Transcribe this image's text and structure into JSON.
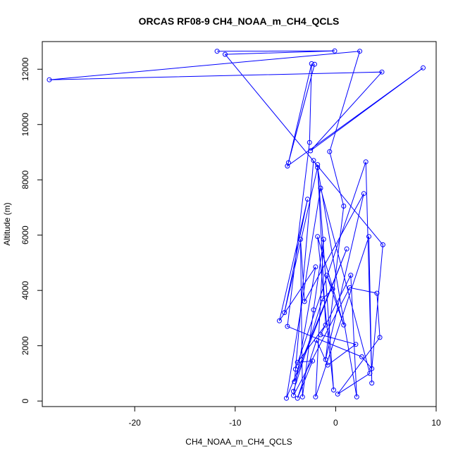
{
  "chart_data": {
    "type": "line",
    "title": "ORCAS RF08-9 CH4_NOAA_m_CH4_QCLS",
    "xlabel": "CH4_NOAA_m_CH4_QCLS",
    "ylabel": "Altitude (m)",
    "xlim": [
      -29.2,
      10.0
    ],
    "ylim": [
      -200,
      13000
    ],
    "xticks": [
      -20,
      -10,
      0,
      10
    ],
    "yticks": [
      0,
      2000,
      4000,
      6000,
      8000,
      10000,
      12000
    ],
    "grid": false,
    "legend": "none",
    "color": "#0000ff",
    "series": [
      {
        "values": [
          {
            "x": -11.8,
            "y": 12650
          },
          {
            "x": -0.1,
            "y": 12660
          },
          {
            "x": -11.0,
            "y": 12540
          },
          {
            "x": 4.7,
            "y": 5650
          },
          {
            "x": 3.6,
            "y": 1170
          },
          {
            "x": 2.6,
            "y": 1600
          },
          {
            "x": -4.8,
            "y": 2700
          },
          {
            "x": -2.6,
            "y": 9350
          },
          {
            "x": -2.4,
            "y": 12200
          },
          {
            "x": -4.7,
            "y": 8620
          },
          {
            "x": -2.1,
            "y": 12180
          },
          {
            "x": -4.8,
            "y": 8500
          },
          {
            "x": 8.7,
            "y": 12050
          },
          {
            "x": -2.5,
            "y": 9050
          },
          {
            "x": 4.6,
            "y": 11900
          },
          {
            "x": -28.5,
            "y": 11620
          },
          {
            "x": 2.4,
            "y": 12650
          },
          {
            "x": -0.6,
            "y": 9020
          },
          {
            "x": 0.8,
            "y": 7050
          },
          {
            "x": -1.0,
            "y": 1500
          },
          {
            "x": 2.8,
            "y": 7500
          },
          {
            "x": -3.1,
            "y": 3600
          },
          {
            "x": -3.5,
            "y": 5850
          },
          {
            "x": -3.3,
            "y": 150
          },
          {
            "x": -2.2,
            "y": 3300
          },
          {
            "x": -1.2,
            "y": 5850
          },
          {
            "x": -2.0,
            "y": 150
          },
          {
            "x": 3.3,
            "y": 5950
          },
          {
            "x": 3.6,
            "y": 650
          },
          {
            "x": 3.0,
            "y": 8650
          },
          {
            "x": -4.0,
            "y": 1150
          },
          {
            "x": -2.2,
            "y": 8700
          },
          {
            "x": -4.1,
            "y": 700
          },
          {
            "x": 1.1,
            "y": 5500
          },
          {
            "x": -4.9,
            "y": 100
          },
          {
            "x": -1.5,
            "y": 7700
          },
          {
            "x": 3.4,
            "y": 1000
          },
          {
            "x": 0.2,
            "y": 250
          },
          {
            "x": 4.4,
            "y": 2300
          },
          {
            "x": 4.1,
            "y": 3900
          },
          {
            "x": 1.4,
            "y": 4100
          },
          {
            "x": -4.2,
            "y": 200
          },
          {
            "x": -2.0,
            "y": 4850
          },
          {
            "x": -5.6,
            "y": 2900
          },
          {
            "x": -2.8,
            "y": 7300
          },
          {
            "x": -5.1,
            "y": 3200
          },
          {
            "x": -1.8,
            "y": 8450
          },
          {
            "x": 2.1,
            "y": 150
          },
          {
            "x": 1.5,
            "y": 4550
          },
          {
            "x": -1.5,
            "y": 2400
          },
          {
            "x": 2.0,
            "y": 2050
          },
          {
            "x": -0.8,
            "y": 1300
          },
          {
            "x": -1.9,
            "y": 2200
          },
          {
            "x": -3.8,
            "y": 100
          },
          {
            "x": -2.3,
            "y": 1450
          },
          {
            "x": -3.8,
            "y": 1400
          },
          {
            "x": -1.0,
            "y": 2750
          },
          {
            "x": -1.8,
            "y": 8550
          },
          {
            "x": -0.2,
            "y": 400
          },
          {
            "x": -1.8,
            "y": 5950
          },
          {
            "x": 0.8,
            "y": 2750
          },
          {
            "x": -0.9,
            "y": 4550
          },
          {
            "x": -0.3,
            "y": 4050
          },
          {
            "x": -1.3,
            "y": 3700
          },
          {
            "x": -4.2,
            "y": 350
          }
        ]
      }
    ]
  }
}
